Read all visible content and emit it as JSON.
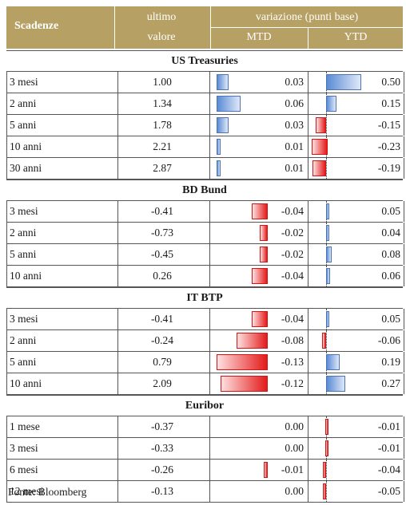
{
  "header": {
    "col_scadenze": "Scadenze",
    "col_ultimo_l1": "ultimo",
    "col_ultimo_l2": "valore",
    "col_variazione": "variazione (punti base)",
    "col_mtd": "MTD",
    "col_ytd": "YTD"
  },
  "colors": {
    "header_bg": "#b7a064",
    "positive_bar": "#5b8bd6",
    "negative_bar": "#e31a1a"
  },
  "mtd_max_abs": 0.13,
  "ytd_max_abs": 0.5,
  "sections": [
    {
      "title": "US Treasuries",
      "rows": [
        {
          "name": "3 mesi",
          "value": "1.00",
          "mtd": "0.03",
          "ytd": "0.50"
        },
        {
          "name": "2 anni",
          "value": "1.34",
          "mtd": "0.06",
          "ytd": "0.15"
        },
        {
          "name": "5 anni",
          "value": "1.78",
          "mtd": "0.03",
          "ytd": "-0.15"
        },
        {
          "name": "10 anni",
          "value": "2.21",
          "mtd": "0.01",
          "ytd": "-0.23"
        },
        {
          "name": "30 anni",
          "value": "2.87",
          "mtd": "0.01",
          "ytd": "-0.19"
        }
      ]
    },
    {
      "title": "BD Bund",
      "rows": [
        {
          "name": "3 mesi",
          "value": "-0.41",
          "mtd": "-0.04",
          "ytd": "0.05"
        },
        {
          "name": "2 anni",
          "value": "-0.73",
          "mtd": "-0.02",
          "ytd": "0.04"
        },
        {
          "name": "5 anni",
          "value": "-0.45",
          "mtd": "-0.02",
          "ytd": "0.08"
        },
        {
          "name": "10 anni",
          "value": "0.26",
          "mtd": "-0.04",
          "ytd": "0.06"
        }
      ]
    },
    {
      "title": "IT BTP",
      "rows": [
        {
          "name": "3 mesi",
          "value": "-0.41",
          "mtd": "-0.04",
          "ytd": "0.05"
        },
        {
          "name": "2 anni",
          "value": "-0.24",
          "mtd": "-0.08",
          "ytd": "-0.06"
        },
        {
          "name": "5 anni",
          "value": "0.79",
          "mtd": "-0.13",
          "ytd": "0.19"
        },
        {
          "name": "10 anni",
          "value": "2.09",
          "mtd": "-0.12",
          "ytd": "0.27"
        }
      ]
    },
    {
      "title": "Euribor",
      "rows": [
        {
          "name": "1 mese",
          "value": "-0.37",
          "mtd": "0.00",
          "ytd": "-0.01"
        },
        {
          "name": "3 mesi",
          "value": "-0.33",
          "mtd": "0.00",
          "ytd": "-0.01"
        },
        {
          "name": "6 mesi",
          "value": "-0.26",
          "mtd": "-0.01",
          "ytd": "-0.04"
        },
        {
          "name": "12 mesi",
          "value": "-0.13",
          "mtd": "0.00",
          "ytd": "-0.05"
        }
      ]
    }
  ],
  "footer": "Fonte: Bloomberg"
}
